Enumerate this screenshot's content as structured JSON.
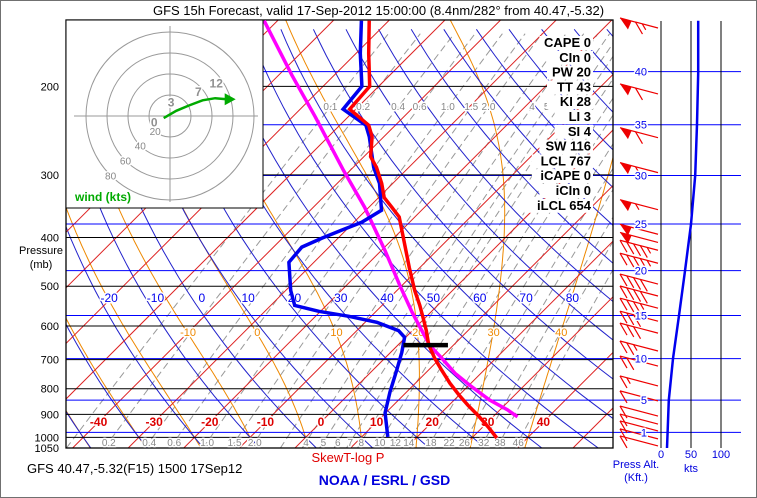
{
  "window_title": "GFS 15h Forecast, valid 17-Sep-2012 15:00:00 (8.4nm/282° from 40.47,-5.32)",
  "footer": {
    "station_line": "GFS 40.47,-5.32(F15) 1500 17Sep12",
    "chart_label": "SkewT-log P",
    "credit": "NOAA / ESRL / GSD"
  },
  "left_axis": {
    "title_line1": "Pressure",
    "title_line2": "(mb)",
    "ticks": [
      200,
      300,
      400,
      500,
      600,
      700,
      800,
      900,
      1000,
      1050
    ]
  },
  "right_panel": {
    "title_line1": "Press Alt.",
    "title_line2": "(Kft.)",
    "x_label": "kts",
    "x_ticks": [
      0,
      50,
      100
    ],
    "alt_labels_kft": [
      40,
      35,
      30,
      25,
      20,
      15,
      10,
      5,
      1
    ]
  },
  "stats": [
    {
      "label": "CAPE",
      "value": "0"
    },
    {
      "label": "CIn",
      "value": "0"
    },
    {
      "label": "PW",
      "value": "20"
    },
    {
      "label": "TT",
      "value": "43"
    },
    {
      "label": "KI",
      "value": "28"
    },
    {
      "label": "LI",
      "value": "3"
    },
    {
      "label": "SI",
      "value": "4"
    },
    {
      "label": "SW",
      "value": "116"
    },
    {
      "label": "LCL",
      "value": "767"
    },
    {
      "label": "iCAPE",
      "value": "0"
    },
    {
      "label": "iCIn",
      "value": "0"
    },
    {
      "label": "iLCL",
      "value": "654"
    }
  ],
  "hodograph": {
    "label": "wind (kts)",
    "rings_kts": [
      20,
      40,
      60,
      80
    ],
    "trace_uv_kts": [
      [
        -6,
        -2
      ],
      [
        6,
        5
      ],
      [
        18,
        10
      ],
      [
        31,
        15
      ],
      [
        43,
        17
      ],
      [
        54,
        16
      ]
    ],
    "point_labels": [
      {
        "text": "0",
        "u": -15,
        "v": -10
      },
      {
        "text": "3",
        "u": 1,
        "v": 9
      },
      {
        "text": "7",
        "u": 27,
        "v": 19
      },
      {
        "text": "12",
        "u": 44,
        "v": 27
      }
    ]
  },
  "colors": {
    "temperature": "#ff0000",
    "dewpoint": "#0000ee",
    "parcel": "#ff00ff",
    "isotherm": "#dd2222",
    "dry_adiabat": "#2222cc",
    "moist_adiabat": "#ee8800",
    "mixing_ratio": "#999999",
    "altitude_line": "#0000ff",
    "grid": "#000000",
    "hodo_ring": "#999999",
    "wind_trace": "#00aa00",
    "barb": "#ee0000"
  },
  "chart_data": {
    "type": "skewt-logp",
    "pressure_range_mb": [
      147.5,
      1050
    ],
    "isotherm_labels_c": [
      -40,
      -30,
      -20,
      -10,
      0,
      10,
      20,
      30,
      40
    ],
    "dry_adiabat_labels_c": [
      -20,
      -10,
      0,
      10,
      20,
      30,
      40,
      50,
      60,
      70,
      80
    ],
    "moist_adiabat_labels_c": [
      -10,
      0,
      10,
      20,
      30,
      40
    ],
    "mixing_ratio_lines_gkg": [
      0.1,
      0.2,
      0.4,
      0.6,
      1.0,
      1.5,
      2.0,
      3,
      4,
      5,
      6,
      7,
      8,
      10,
      12,
      14,
      18,
      22,
      26,
      32,
      38,
      46
    ],
    "mixing_ratio_labels_top": [
      0.1,
      0.2,
      0.4,
      0.6,
      1.0,
      1.5,
      2.0,
      4,
      5
    ],
    "mixing_ratio_labels_bottom": [
      0.2,
      0.4,
      0.6,
      1.0,
      1.5,
      2.0,
      4,
      5,
      6,
      7,
      8,
      10,
      12,
      14,
      18,
      22,
      26,
      32,
      38,
      46
    ],
    "altitude_lines_kft": [
      1,
      5,
      10,
      15,
      20,
      25,
      30,
      35,
      40
    ],
    "temperature_profile_p_c": [
      [
        148,
        -63.5
      ],
      [
        172,
        -57.7
      ],
      [
        200,
        -51.6
      ],
      [
        222,
        -51.1
      ],
      [
        239,
        -44.8
      ],
      [
        252,
        -42.1
      ],
      [
        276,
        -38.8
      ],
      [
        290,
        -35.8
      ],
      [
        312,
        -32.0
      ],
      [
        333,
        -29.0
      ],
      [
        348,
        -25.9
      ],
      [
        364,
        -22.8
      ],
      [
        411,
        -17.1
      ],
      [
        459,
        -11.9
      ],
      [
        510,
        -6.8
      ],
      [
        546,
        -3.2
      ],
      [
        580,
        -0.2
      ],
      [
        613,
        2.5
      ],
      [
        653,
        5.4
      ],
      [
        696,
        9.0
      ],
      [
        735,
        12.4
      ],
      [
        780,
        16.2
      ],
      [
        824,
        20.0
      ],
      [
        863,
        23.4
      ],
      [
        907,
        27.3
      ],
      [
        958,
        31.3
      ],
      [
        1003,
        34.5
      ]
    ],
    "dewpoint_profile_p_c": [
      [
        148,
        -64.9
      ],
      [
        172,
        -59.2
      ],
      [
        200,
        -53.0
      ],
      [
        222,
        -52.3
      ],
      [
        239,
        -45.3
      ],
      [
        252,
        -42.6
      ],
      [
        290,
        -36.3
      ],
      [
        312,
        -32.4
      ],
      [
        353,
        -27.2
      ],
      [
        373,
        -28.6
      ],
      [
        387,
        -30.8
      ],
      [
        401,
        -32.9
      ],
      [
        418,
        -34.9
      ],
      [
        448,
        -34.5
      ],
      [
        510,
        -29.1
      ],
      [
        546,
        -25.7
      ],
      [
        561,
        -20.3
      ],
      [
        574,
        -14.0
      ],
      [
        590,
        -7.9
      ],
      [
        613,
        -2.5
      ],
      [
        632,
        -0.2
      ],
      [
        677,
        2.0
      ],
      [
        735,
        4.3
      ],
      [
        812,
        7.0
      ],
      [
        894,
        9.9
      ],
      [
        998,
        14.7
      ]
    ],
    "parcel_profile_p_c": [
      [
        148,
        -82.4
      ],
      [
        190,
        -67.6
      ],
      [
        230,
        -55.9
      ],
      [
        294,
        -41.2
      ],
      [
        348,
        -30.8
      ],
      [
        424,
        -19.4
      ],
      [
        498,
        -10.4
      ],
      [
        563,
        -3.4
      ],
      [
        618,
        2.2
      ],
      [
        656,
        5.8
      ],
      [
        696,
        10.3
      ],
      [
        745,
        15.3
      ],
      [
        787,
        20.1
      ],
      [
        842,
        26.3
      ],
      [
        881,
        31.3
      ],
      [
        910,
        34.4
      ]
    ],
    "lcl_bar": {
      "p_mb": 655,
      "t_from_c": 1.0,
      "t_to_c": 9.0
    },
    "wind_speed_profile_p_kts": [
      [
        148,
        62
      ],
      [
        188,
        62
      ],
      [
        238,
        60
      ],
      [
        301,
        57
      ],
      [
        376,
        50
      ],
      [
        466,
        40
      ],
      [
        572,
        30
      ],
      [
        697,
        20
      ],
      [
        843,
        13
      ],
      [
        977,
        11
      ],
      [
        1050,
        10
      ]
    ],
    "wind_barbs_p_kts": [
      [
        153,
        65
      ],
      [
        207,
        60
      ],
      [
        253,
        60
      ],
      [
        297,
        55
      ],
      [
        352,
        55
      ],
      [
        394,
        50
      ],
      [
        409,
        50
      ],
      [
        424,
        45
      ],
      [
        450,
        45
      ],
      [
        495,
        40
      ],
      [
        523,
        40
      ],
      [
        553,
        35
      ],
      [
        587,
        32
      ],
      [
        620,
        30
      ],
      [
        673,
        25
      ],
      [
        721,
        20
      ],
      [
        790,
        15
      ],
      [
        846,
        13
      ],
      [
        907,
        10
      ],
      [
        941,
        10
      ],
      [
        971,
        10
      ],
      [
        1007,
        10
      ],
      [
        1040,
        10
      ]
    ]
  }
}
